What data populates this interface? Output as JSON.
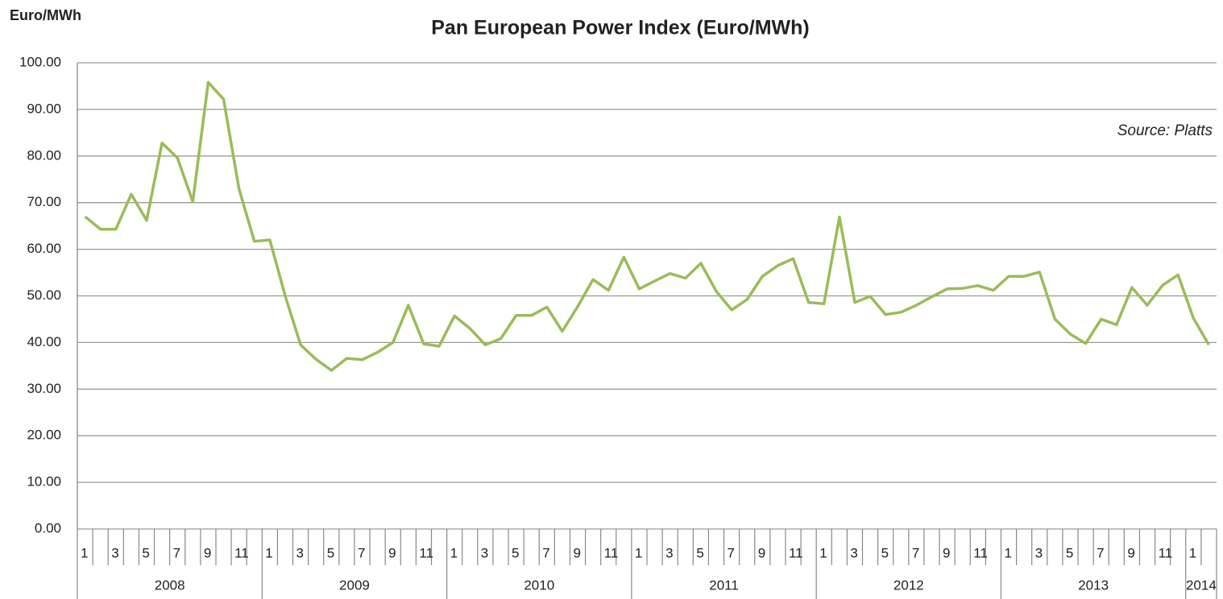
{
  "chart_data": {
    "type": "line",
    "title": "Pan European Power Index (Euro/MWh)",
    "y_label": "Euro/MWh",
    "annotation": "Source: Platts",
    "categories": [
      "1",
      null,
      "3",
      null,
      "5",
      null,
      "7",
      null,
      "9",
      null,
      "11",
      null,
      "1",
      null,
      "3",
      null,
      "5",
      null,
      "7",
      null,
      "9",
      null,
      "11",
      null,
      "1",
      null,
      "3",
      null,
      "5",
      null,
      "7",
      null,
      "9",
      null,
      "11",
      null,
      "1",
      null,
      "3",
      null,
      "5",
      null,
      "7",
      null,
      "9",
      null,
      "11",
      null,
      "1",
      null,
      "3",
      null,
      "5",
      null,
      "7",
      null,
      "9",
      null,
      "11",
      null,
      "1",
      null,
      "3",
      null,
      "5",
      null,
      "7",
      null,
      "9",
      null,
      "11",
      null,
      "1",
      null
    ],
    "years": [
      "2008",
      "2009",
      "2010",
      "2011",
      "2012",
      "2013",
      "2014"
    ],
    "series": [
      {
        "name": "Pan European Power Index",
        "color": "#9bbb59",
        "values": [
          67,
          64.3,
          64.3,
          71.8,
          66.2,
          82.8,
          79.6,
          70.2,
          95.8,
          92.2,
          73,
          61.7,
          62,
          50,
          39.5,
          36.4,
          34,
          36.6,
          36.3,
          37.9,
          40,
          48,
          39.7,
          39.2,
          45.7,
          43,
          39.5,
          40.8,
          45.8,
          45.8,
          47.6,
          42.4,
          47.7,
          53.5,
          51.2,
          58.3,
          51.5,
          53.2,
          54.8,
          53.8,
          57,
          51,
          47,
          49.2,
          54.2,
          56.5,
          58,
          48.6,
          48.3,
          66.9,
          48.6,
          49.9,
          46,
          46.5,
          48,
          49.8,
          51.5,
          51.6,
          52.2,
          51.2,
          54.2,
          54.2,
          55.1,
          45,
          41.8,
          39.8,
          45,
          43.8,
          51.8,
          48,
          52.3,
          54.5,
          45.2,
          39.5
        ]
      }
    ],
    "ylim": [
      0,
      100
    ],
    "yticks": [
      {
        "value": 0,
        "label": "0.00"
      },
      {
        "value": 10,
        "label": "10.00"
      },
      {
        "value": 20,
        "label": "20.00"
      },
      {
        "value": 30,
        "label": "30.00"
      },
      {
        "value": 40,
        "label": "40.00"
      },
      {
        "value": 50,
        "label": "50.00"
      },
      {
        "value": 60,
        "label": "60.00"
      },
      {
        "value": 70,
        "label": "70.00"
      },
      {
        "value": 80,
        "label": "80.00"
      },
      {
        "value": 90,
        "label": "90.00"
      },
      {
        "value": 100,
        "label": "100.00"
      }
    ],
    "grid": true
  }
}
